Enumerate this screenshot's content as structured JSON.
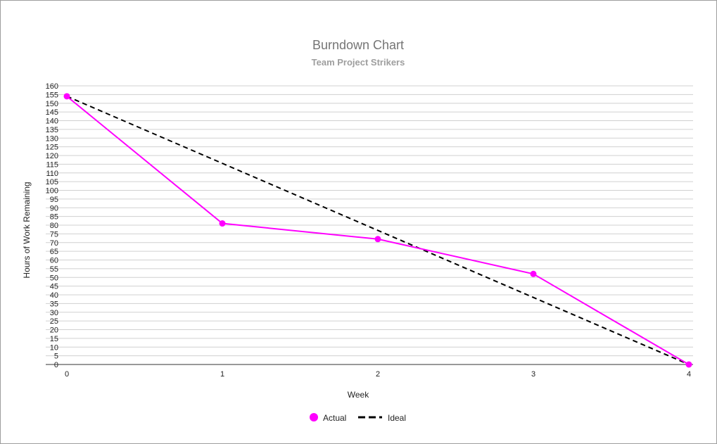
{
  "chart_data": {
    "type": "line",
    "title": "Burndown Chart",
    "subtitle": "Team Project Strikers",
    "xlabel": "Week",
    "ylabel": "Hours of Work Remaining",
    "x": [
      0,
      1,
      2,
      3,
      4
    ],
    "xlim": [
      0,
      4
    ],
    "ylim": [
      0,
      160
    ],
    "ytick_step": 5,
    "grid": true,
    "legend_position": "bottom",
    "series": [
      {
        "name": "Actual",
        "values": [
          154,
          81,
          72,
          52,
          0
        ],
        "color": "#ff00ff",
        "style": "solid-markers"
      },
      {
        "name": "Ideal",
        "values": [
          154,
          115.5,
          77,
          38.5,
          0
        ],
        "color": "#000000",
        "style": "dashed"
      }
    ]
  }
}
